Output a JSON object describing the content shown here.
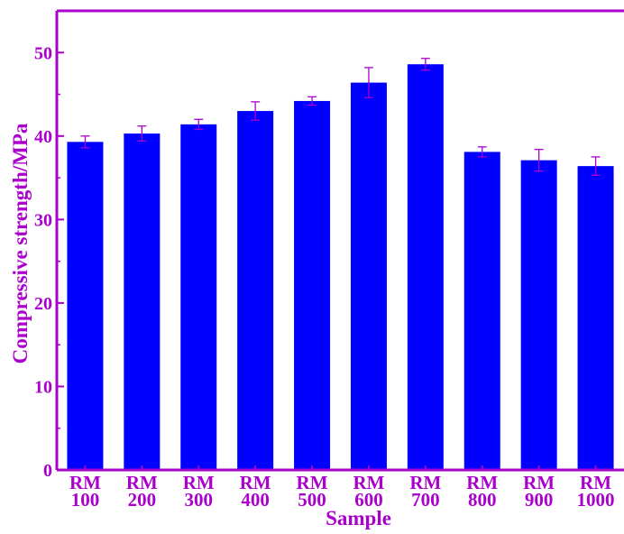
{
  "chart_data": {
    "type": "bar",
    "title": "",
    "xlabel": "Sample",
    "ylabel": "Compressive strength/MPa",
    "categories": [
      [
        "RM",
        "100"
      ],
      [
        "RM",
        "200"
      ],
      [
        "RM",
        "300"
      ],
      [
        "RM",
        "400"
      ],
      [
        "RM",
        "500"
      ],
      [
        "RM",
        "600"
      ],
      [
        "RM",
        "700"
      ],
      [
        "RM",
        "800"
      ],
      [
        "RM",
        "900"
      ],
      [
        "RM",
        "1000"
      ]
    ],
    "values": [
      39.3,
      40.3,
      41.4,
      43.0,
      44.2,
      46.4,
      48.6,
      38.1,
      37.1,
      36.4
    ],
    "errors": [
      0.7,
      0.9,
      0.6,
      1.1,
      0.5,
      1.8,
      0.7,
      0.6,
      1.3,
      1.1
    ],
    "yticks": [
      0,
      10,
      20,
      30,
      40,
      50
    ],
    "ylim": [
      0,
      55
    ],
    "grid": false,
    "colors": {
      "bar": "#0000ff",
      "axis": "#aa00cc",
      "text": "#aa00cc",
      "error_bar": "#aa00cc"
    }
  }
}
